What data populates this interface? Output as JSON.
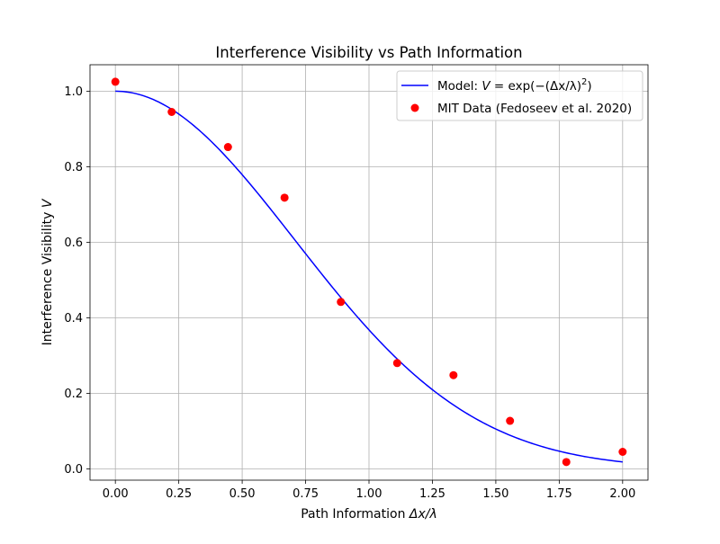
{
  "chart_data": {
    "type": "line+scatter",
    "title": "Interference Visibility vs Path Information",
    "xlabel": "Path Information Δx/λ",
    "ylabel": "Interference Visibility V",
    "xlim": [
      -0.1,
      2.1
    ],
    "ylim": [
      -0.03,
      1.07
    ],
    "xticks": [
      0.0,
      0.25,
      0.5,
      0.75,
      1.0,
      1.25,
      1.5,
      1.75,
      2.0
    ],
    "xtick_labels": [
      "0.00",
      "0.25",
      "0.50",
      "0.75",
      "1.00",
      "1.25",
      "1.50",
      "1.75",
      "2.00"
    ],
    "yticks": [
      0.0,
      0.2,
      0.4,
      0.6,
      0.8,
      1.0
    ],
    "ytick_labels": [
      "0.0",
      "0.2",
      "0.4",
      "0.6",
      "0.8",
      "1.0"
    ],
    "grid": true,
    "legend_position": "upper right",
    "series": [
      {
        "name": "Model: V = exp(−(Δx/λ)²)",
        "kind": "line",
        "color": "#0000ff",
        "function": "exp(-x^2)",
        "x_range": [
          0,
          2
        ]
      },
      {
        "name": "MIT Data (Fedoseev et al. 2020)",
        "kind": "scatter",
        "color": "#ff0000",
        "x": [
          0.0,
          0.222,
          0.444,
          0.667,
          0.889,
          1.111,
          1.333,
          1.556,
          1.778,
          2.0
        ],
        "y": [
          1.025,
          0.945,
          0.852,
          0.718,
          0.442,
          0.28,
          0.248,
          0.127,
          0.018,
          0.045
        ]
      }
    ],
    "legend": {
      "model_prefix": "Model: ",
      "model_V": "V",
      "model_eq": " = exp(−(Δx/λ)",
      "model_sup": "2",
      "model_close": ")",
      "data_label": "MIT Data (Fedoseev et al. 2020)"
    },
    "axis_text": {
      "xlabel_prefix": "Path Information ",
      "xlabel_math": "Δx/λ",
      "ylabel_prefix": "Interference Visibility ",
      "ylabel_math": "V"
    }
  }
}
